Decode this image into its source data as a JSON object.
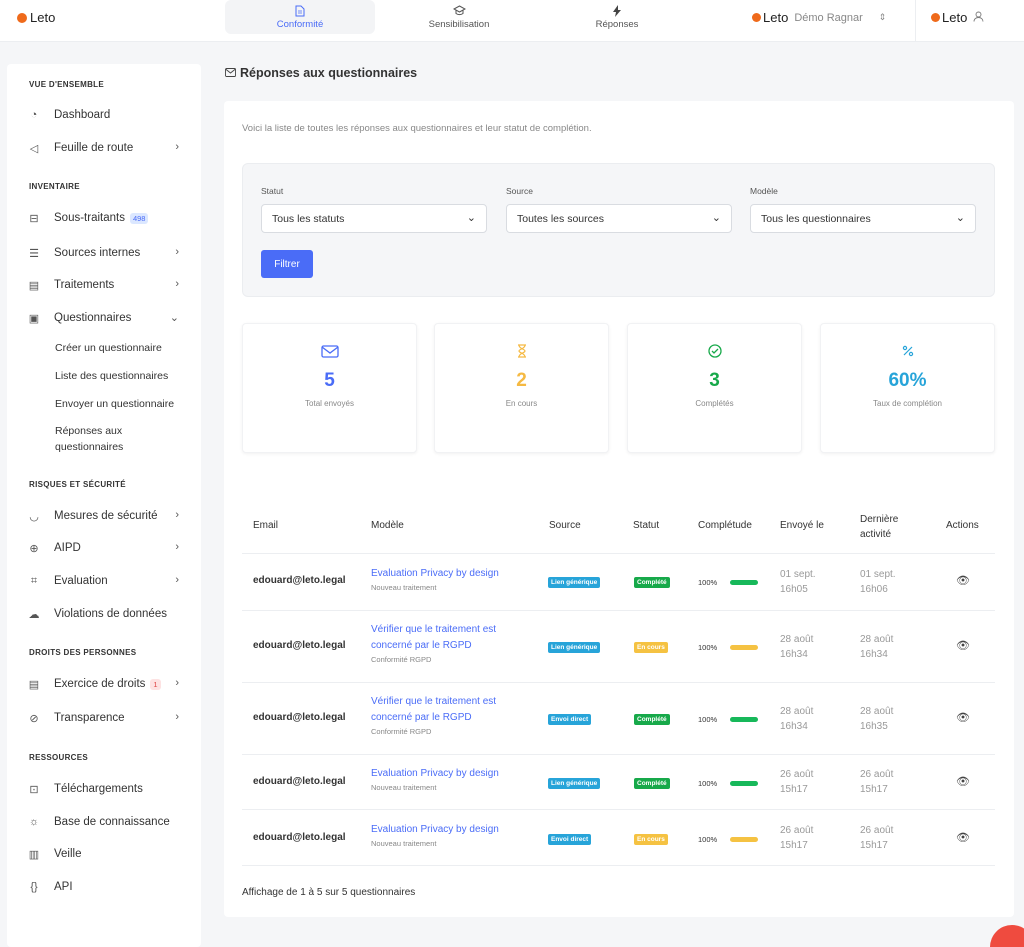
{
  "brand": "Leto",
  "top_tabs": [
    {
      "label": "Conformité",
      "icon": "document-icon"
    },
    {
      "label": "Sensibilisation",
      "icon": "graduation-cap-icon"
    },
    {
      "label": "Réponses",
      "icon": "bolt-icon"
    }
  ],
  "org": {
    "brand": "Leto",
    "name": "Démo Ragnar"
  },
  "user": {
    "brand": "Leto"
  },
  "sidebar": {
    "sections": [
      "VUE D'ENSEMBLE",
      "INVENTAIRE",
      "RISQUES ET SÉCURITÉ",
      "DROITS DES PERSONNES",
      "RESSOURCES"
    ],
    "items": {
      "dashboard": "Dashboard",
      "feuille": "Feuille de route",
      "sous_traitants": "Sous-traitants",
      "sous_traitants_badge": "498",
      "sources": "Sources internes",
      "traitements": "Traitements",
      "questionnaires": "Questionnaires",
      "mesures": "Mesures de sécurité",
      "aipd": "AIPD",
      "evaluation": "Evaluation",
      "violations": "Violations de données",
      "exercice": "Exercice de droits",
      "exercice_badge": "1",
      "transparence": "Transparence",
      "telechargements": "Téléchargements",
      "base": "Base de connaissance",
      "veille": "Veille",
      "api": "API"
    },
    "sub_items": [
      "Créer un questionnaire",
      "Liste des questionnaires",
      "Envoyer un questionnaire",
      "Réponses aux questionnaires"
    ]
  },
  "main": {
    "title": "Réponses aux questionnaires",
    "intro": "Voici la liste de toutes les réponses aux questionnaires et leur statut de complétion.",
    "filters": {
      "statut_label": "Statut",
      "statut_value": "Tous les statuts",
      "source_label": "Source",
      "source_value": "Toutes les sources",
      "modele_label": "Modèle",
      "modele_value": "Tous les questionnaires",
      "button": "Filtrer"
    },
    "stats": [
      {
        "icon": "envelope-icon",
        "value": "5",
        "label": "Total envoyés",
        "color": "#4a6cf7"
      },
      {
        "icon": "hourglass-icon",
        "value": "2",
        "label": "En cours",
        "color": "#f5b942"
      },
      {
        "icon": "check-circle-icon",
        "value": "3",
        "label": "Complétés",
        "color": "#17a94a"
      },
      {
        "icon": "percent-icon",
        "value": "60%",
        "label": "Taux de complétion",
        "color": "#27a4d9"
      }
    ],
    "table": {
      "headers": [
        "Email",
        "Modèle",
        "Source",
        "Statut",
        "Complétude",
        "Envoyé le",
        "Dernière activité",
        "Actions"
      ],
      "rows": [
        {
          "email": "edouard@leto.legal",
          "model": "Evaluation Privacy by design",
          "model_sub": "Nouveau traitement",
          "source": "Lien générique",
          "status": "Complété",
          "status_kind": "done",
          "pct": "100%",
          "sent1": "01 sept.",
          "sent2": "16h05",
          "last1": "01 sept.",
          "last2": "16h06"
        },
        {
          "email": "edouard@leto.legal",
          "model": "Vérifier que le traitement est concerné par le RGPD",
          "model_sub": "Conformité RGPD",
          "source": "Lien générique",
          "status": "En cours",
          "status_kind": "progress",
          "pct": "100%",
          "sent1": "28 août",
          "sent2": "16h34",
          "last1": "28 août",
          "last2": "16h34"
        },
        {
          "email": "edouard@leto.legal",
          "model": "Vérifier que le traitement est concerné par le RGPD",
          "model_sub": "Conformité RGPD",
          "source": "Envoi direct",
          "status": "Complété",
          "status_kind": "done",
          "pct": "100%",
          "sent1": "28 août",
          "sent2": "16h34",
          "last1": "28 août",
          "last2": "16h35"
        },
        {
          "email": "edouard@leto.legal",
          "model": "Evaluation Privacy by design",
          "model_sub": "Nouveau traitement",
          "source": "Lien générique",
          "status": "Complété",
          "status_kind": "done",
          "pct": "100%",
          "sent1": "26 août",
          "sent2": "15h17",
          "last1": "26 août",
          "last2": "15h17"
        },
        {
          "email": "edouard@leto.legal",
          "model": "Evaluation Privacy by design",
          "model_sub": "Nouveau traitement",
          "source": "Envoi direct",
          "status": "En cours",
          "status_kind": "progress",
          "pct": "100%",
          "sent1": "26 août",
          "sent2": "15h17",
          "last1": "26 août",
          "last2": "15h17"
        }
      ],
      "footer": "Affichage de 1 à 5 sur 5 questionnaires"
    }
  }
}
